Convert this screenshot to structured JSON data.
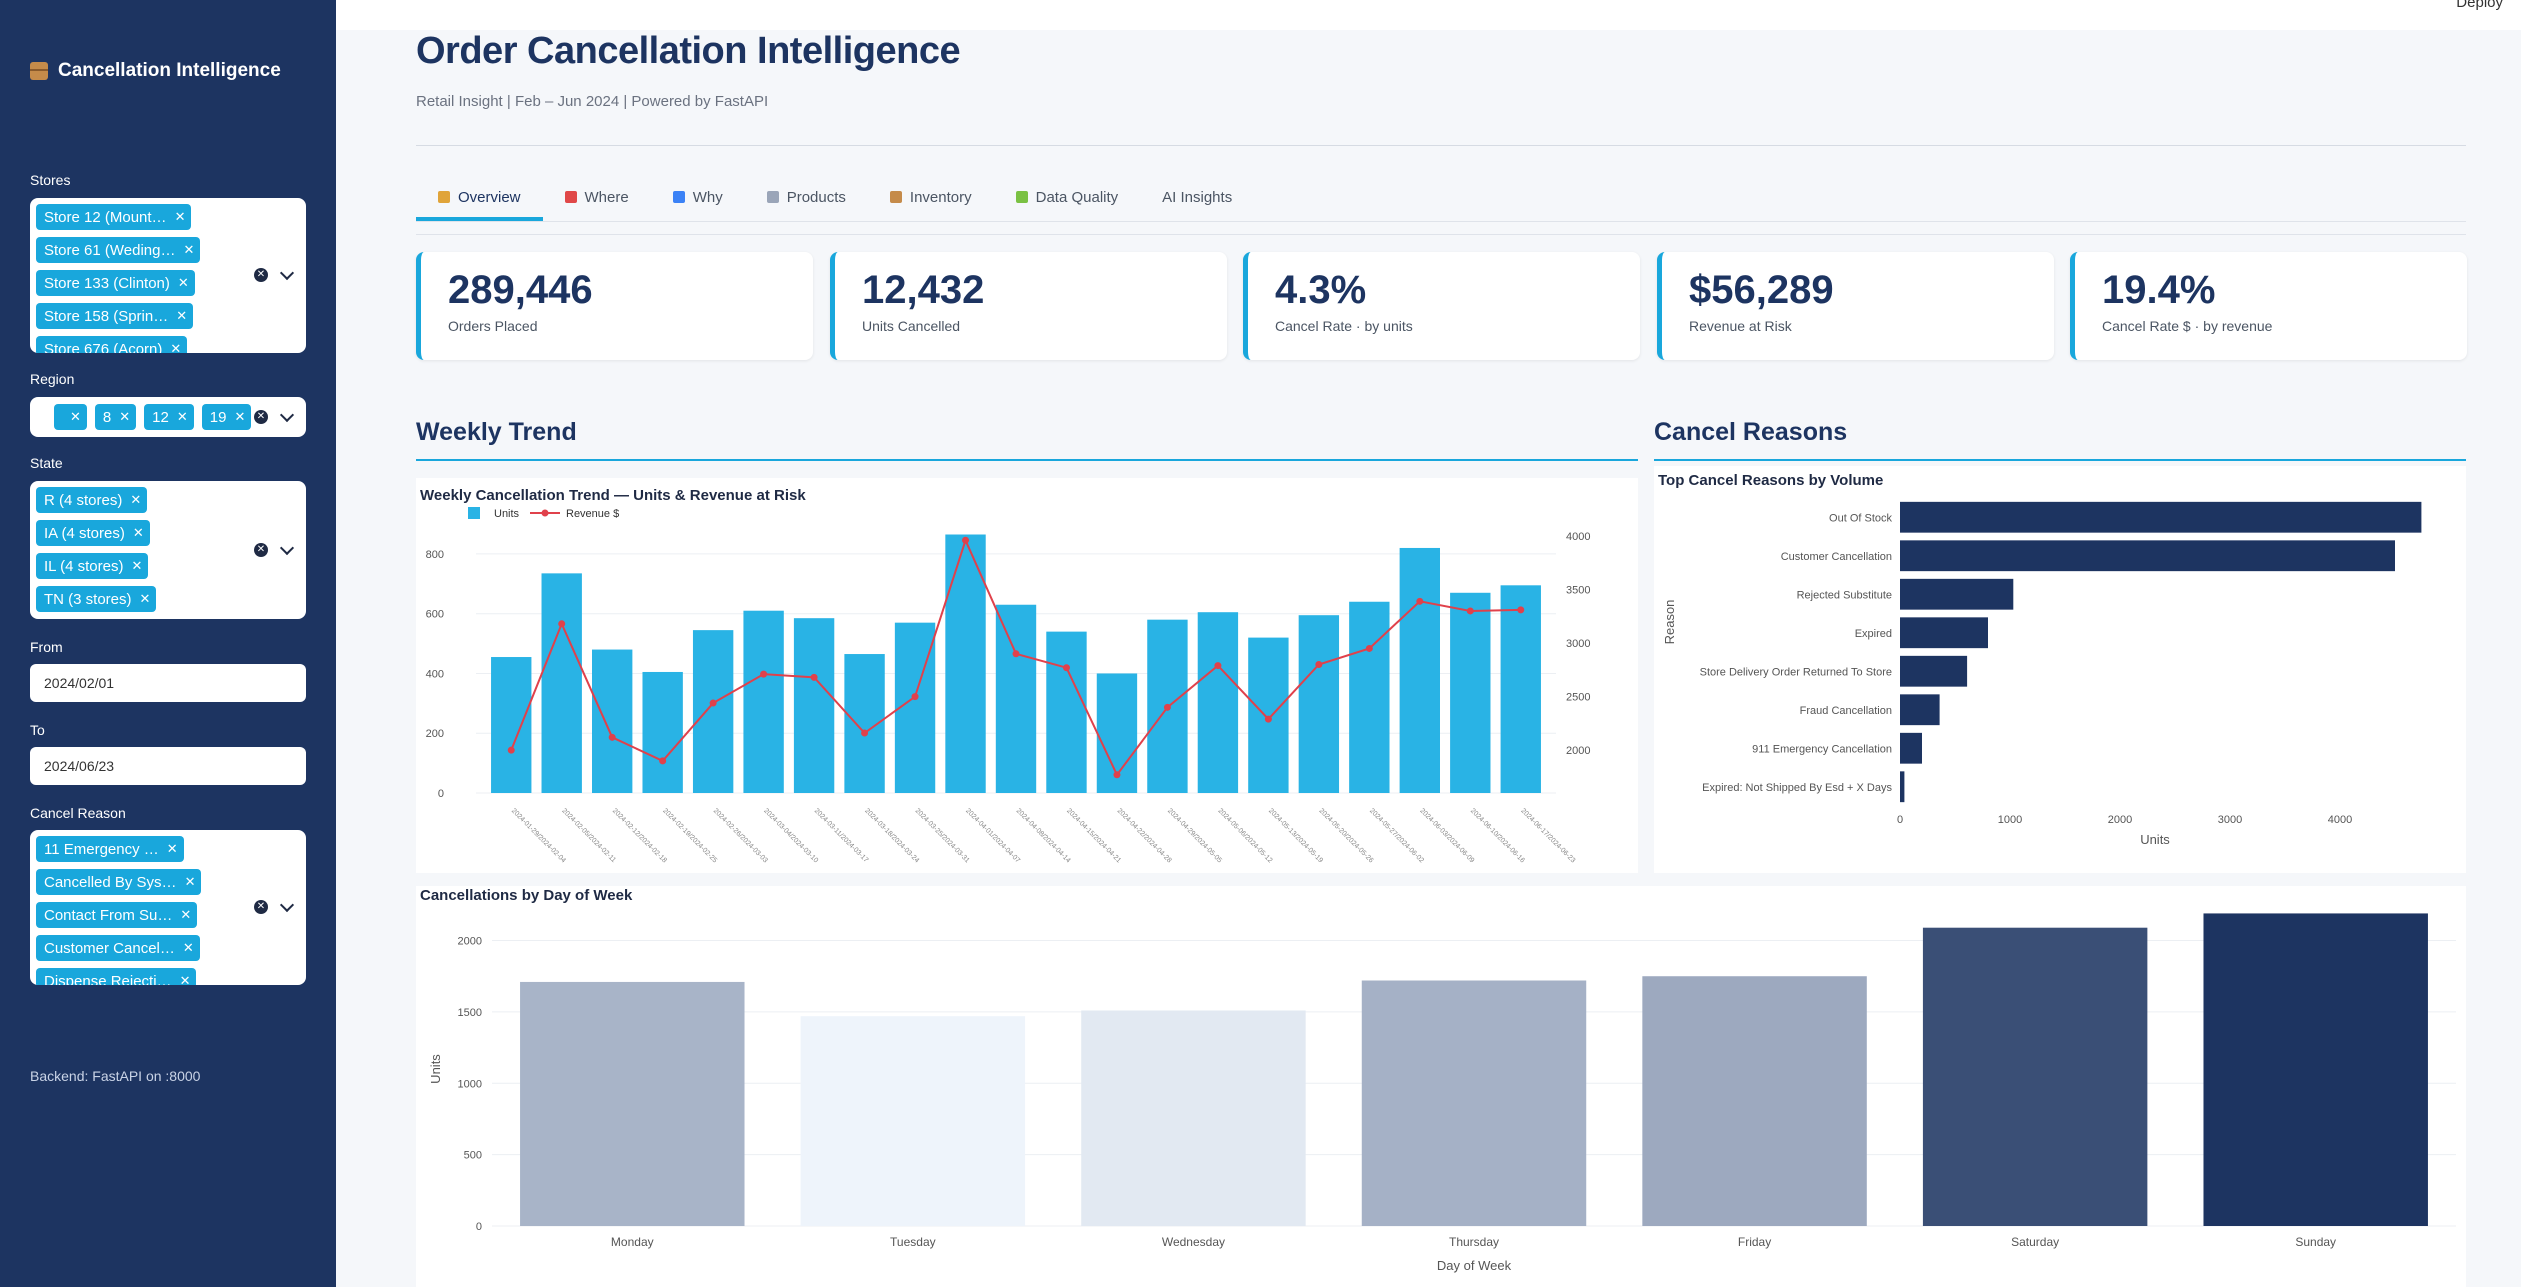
{
  "sidebar": {
    "app_title": "Cancellation Intelligence",
    "stores_label": "Stores",
    "stores": [
      "Store 12 (Mount…",
      "Store 61 (Weding…",
      "Store 133 (Clinton)",
      "Store 158 (Sprin…",
      "Store 676 (Acorn)"
    ],
    "region_label": "Region",
    "regions": [
      "",
      "8",
      "12",
      "19"
    ],
    "state_label": "State",
    "states": [
      "R (4 stores)",
      "IA (4 stores)",
      "IL (4 stores)",
      "TN (3 stores)"
    ],
    "from_label": "From",
    "from_value": "2024/02/01",
    "to_label": "To",
    "to_value": "2024/06/23",
    "reason_label": "Cancel Reason",
    "reasons": [
      "11 Emergency …",
      "Cancelled By Sys…",
      "Contact From Su…",
      "Customer Cancel…",
      "Dispense Rejecti…"
    ],
    "backend_text": "Backend: FastAPI on :8000"
  },
  "header": {
    "deploy": "Deploy",
    "title": "Order Cancellation Intelligence",
    "subtitle": "Retail Insight | Feb – Jun 2024 | Powered by FastAPI"
  },
  "tabs": [
    {
      "label": "Overview",
      "icon": "bar-chart-icon",
      "color": "#e0a43a"
    },
    {
      "label": "Where",
      "icon": "pin-icon",
      "color": "#e04848"
    },
    {
      "label": "Why",
      "icon": "magnifier-icon",
      "color": "#3b82f6"
    },
    {
      "label": "Products",
      "icon": "cart-icon",
      "color": "#9aa5b8"
    },
    {
      "label": "Inventory",
      "icon": "box-icon",
      "color": "#c58b4a"
    },
    {
      "label": "Data Quality",
      "icon": "pen-icon",
      "color": "#7ac143"
    },
    {
      "label": "AI Insights",
      "icon": "",
      "color": ""
    }
  ],
  "kpis": [
    {
      "value": "289,446",
      "label": "Orders Placed"
    },
    {
      "value": "12,432",
      "label": "Units Cancelled"
    },
    {
      "value": "4.3%",
      "label": "Cancel Rate · by units"
    },
    {
      "value": "$56,289",
      "label": "Revenue at Risk"
    },
    {
      "value": "19.4%",
      "label": "Cancel Rate $ · by revenue"
    }
  ],
  "sections": {
    "weekly_trend": "Weekly Trend",
    "cancel_reasons": "Cancel Reasons"
  },
  "colors": {
    "navy": "#1d3461",
    "accent": "#19a7dc",
    "bar_units": "#29b3e5",
    "line_revenue": "#e0414b"
  },
  "chart_data": [
    {
      "type": "bar",
      "title": "Weekly Cancellation Trend — Units & Revenue at Risk",
      "legend": [
        "Units",
        "Revenue $"
      ],
      "categories": [
        "2024-01-29/2024-02-04",
        "2024-02-05/2024-02-11",
        "2024-02-12/2024-02-18",
        "2024-02-19/2024-02-25",
        "2024-02-26/2024-03-03",
        "2024-03-04/2024-03-10",
        "2024-03-11/2024-03-17",
        "2024-03-18/2024-03-24",
        "2024-03-25/2024-03-31",
        "2024-04-01/2024-04-07",
        "2024-04-08/2024-04-14",
        "2024-04-15/2024-04-21",
        "2024-04-22/2024-04-28",
        "2024-04-29/2024-05-05",
        "2024-05-06/2024-05-12",
        "2024-05-13/2024-05-19",
        "2024-05-20/2024-05-26",
        "2024-05-27/2024-06-02",
        "2024-06-03/2024-06-09",
        "2024-06-10/2024-06-16",
        "2024-06-17/2024-06-23"
      ],
      "series": [
        {
          "name": "Units",
          "axis": "left",
          "values": [
            455,
            735,
            480,
            405,
            545,
            610,
            585,
            465,
            570,
            865,
            630,
            540,
            400,
            580,
            605,
            520,
            595,
            640,
            820,
            670,
            695
          ]
        },
        {
          "name": "Revenue $",
          "axis": "right",
          "values": [
            2000,
            3180,
            2120,
            1900,
            2440,
            2710,
            2680,
            2160,
            2500,
            3960,
            2900,
            2770,
            1770,
            2400,
            2790,
            2290,
            2800,
            2950,
            3390,
            3300,
            3310
          ]
        }
      ],
      "ylim_left": [
        0,
        860
      ],
      "yticks_left": [
        0,
        200,
        400,
        600,
        800
      ],
      "ylim_right": [
        1600,
        4000
      ],
      "yticks_right": [
        2000,
        2500,
        3000,
        3500,
        4000
      ]
    },
    {
      "type": "bar",
      "orientation": "horizontal",
      "title": "Top Cancel Reasons by Volume",
      "xlabel": "Units",
      "ylabel": "Reason",
      "categories": [
        "Out Of Stock",
        "Customer Cancellation",
        "Rejected Substitute",
        "Expired",
        "Store Delivery Order Returned To Store",
        "Fraud Cancellation",
        "911 Emergency Cancellation",
        "Expired: Not Shipped By Esd + X Days"
      ],
      "values": [
        4740,
        4500,
        1030,
        800,
        610,
        360,
        200,
        40
      ],
      "xlim": [
        0,
        5000
      ],
      "xticks": [
        0,
        1000,
        2000,
        3000,
        4000
      ]
    },
    {
      "type": "bar",
      "title": "Cancellations by Day of Week",
      "xlabel": "Day of Week",
      "ylabel": "Units",
      "categories": [
        "Monday",
        "Tuesday",
        "Wednesday",
        "Thursday",
        "Friday",
        "Saturday",
        "Sunday"
      ],
      "values": [
        1710,
        1470,
        1510,
        1720,
        1750,
        2090,
        2190
      ],
      "ylim": [
        0,
        2200
      ],
      "yticks": [
        0,
        500,
        1000,
        1500,
        2000
      ]
    }
  ]
}
